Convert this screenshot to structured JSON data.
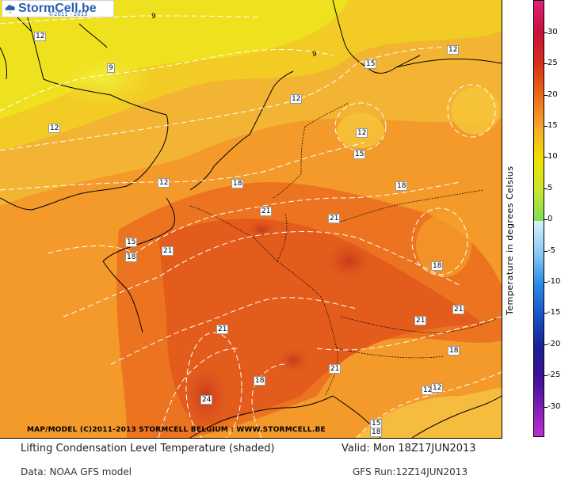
{
  "logo": {
    "brand": "StormCell.be",
    "copyright": "©2011 - 2013"
  },
  "map": {
    "credit": "MAP/MODEL (C)2011-2013 STORMCELL BELGIUM : WWW.STORMCELL.BE",
    "colors": {
      "warm_low": "#f2e600",
      "warm_mid": "#f7a72b",
      "warm_high": "#ec6a18",
      "hot": "#d8461c",
      "land_outline": "#000000",
      "contour": "#ffffff"
    },
    "contour_labels": [
      "9",
      "9",
      "9",
      "12",
      "12",
      "12",
      "12",
      "12",
      "12",
      "12",
      "12",
      "15",
      "15",
      "15",
      "15",
      "18",
      "18",
      "18",
      "18",
      "18",
      "18",
      "18",
      "21",
      "21",
      "21",
      "21",
      "21",
      "21",
      "21",
      "24"
    ]
  },
  "colorbar": {
    "ticks": [
      "30",
      "25",
      "20",
      "15",
      "10",
      "5",
      "0",
      "-5",
      "-10",
      "-15",
      "-20",
      "-25",
      "-30"
    ],
    "title": "Temperature in degrees Celsius"
  },
  "footer": {
    "title": "Lifting Condensation Level Temperature (shaded)",
    "valid": "Valid: Mon 18Z17JUN2013",
    "data_source": "Data: NOAA GFS model",
    "run": "GFS Run:12Z14JUN2013"
  }
}
